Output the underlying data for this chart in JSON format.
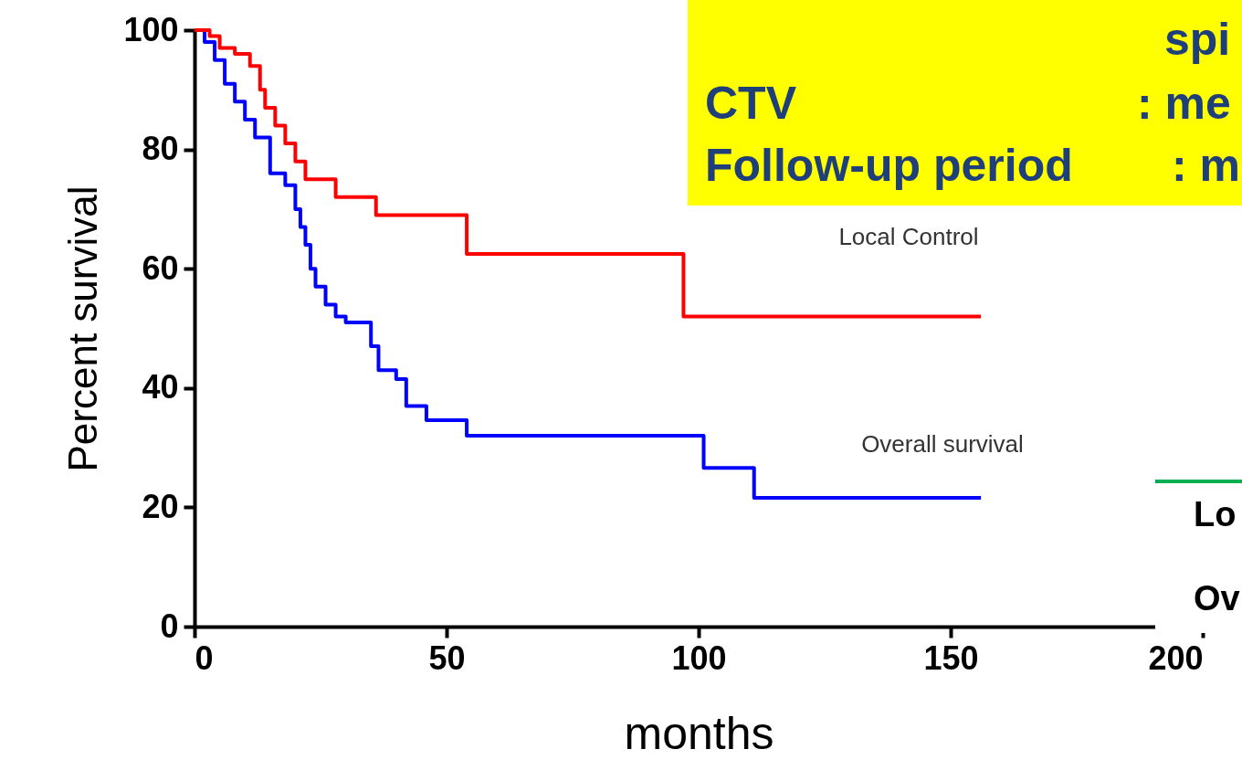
{
  "chart_data": {
    "type": "step",
    "xlabel": "months",
    "ylabel": "Percent survival",
    "xlim": [
      0,
      200
    ],
    "ylim": [
      0,
      100
    ],
    "xticks": [
      0,
      50,
      100,
      150,
      200
    ],
    "yticks": [
      0,
      20,
      40,
      60,
      80,
      100
    ],
    "grid": false,
    "legend": false,
    "marker": "none",
    "line_style": "solid",
    "series": [
      {
        "name": "Local Control",
        "color": "#ff0000",
        "x": [
          0,
          3,
          5,
          8,
          11,
          13,
          14,
          16,
          18,
          20,
          22,
          28,
          36,
          54,
          97,
          156
        ],
        "values": [
          100,
          99,
          97,
          96,
          94,
          90,
          87,
          84,
          81,
          78,
          75,
          72,
          69,
          62.5,
          52,
          52
        ]
      },
      {
        "name": "Overall survival",
        "color": "#0000ff",
        "x": [
          0,
          2,
          4,
          6,
          8,
          10,
          12,
          15,
          18,
          20,
          21,
          22,
          23,
          24,
          26,
          28,
          30,
          35,
          36.5,
          40,
          42,
          46,
          54,
          101,
          111,
          156
        ],
        "values": [
          100,
          98,
          95,
          91,
          88,
          85,
          82,
          76,
          74,
          70,
          67,
          64,
          60,
          57,
          54,
          52,
          51,
          47,
          43,
          41.5,
          37,
          34.6,
          32,
          26.6,
          21.6,
          21.6
        ]
      }
    ],
    "annotations": [
      "spi",
      "CTV",
      ": me",
      "Follow-up period",
      ": m",
      "Lo",
      "Ov"
    ]
  }
}
